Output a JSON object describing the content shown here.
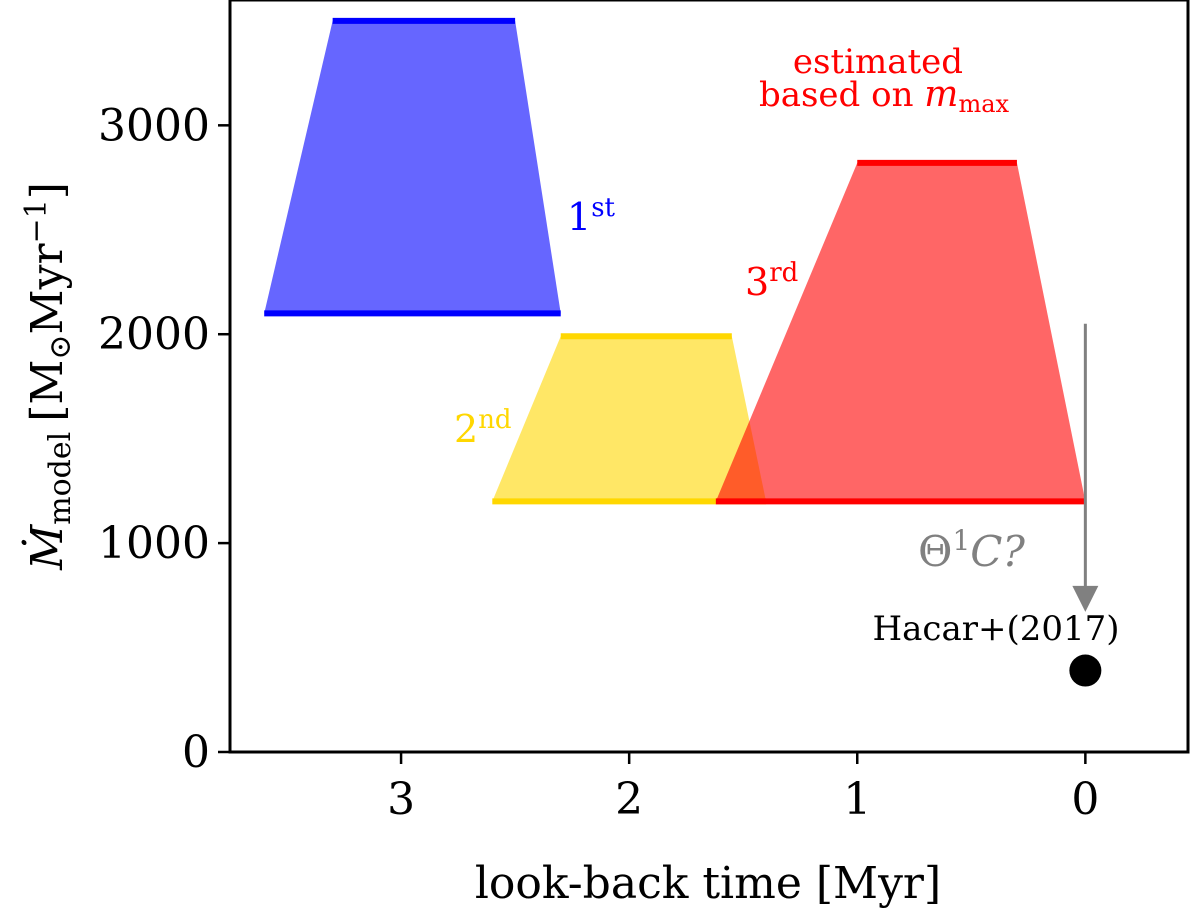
{
  "chart_data": {
    "type": "area",
    "xlabel": "look-back time [Myr]",
    "ylabel_main": "Ṁ",
    "ylabel_sub": "model",
    "ylabel_units": "[M",
    "ylabel_units_sub": "⊙",
    "ylabel_units_tail": "Myr",
    "ylabel_units_sup": "−1",
    "ylabel_units_close": "]",
    "xlim": [
      3.75,
      -0.45
    ],
    "ylim": [
      0,
      3600
    ],
    "x_ticks": [
      3,
      2,
      1,
      0
    ],
    "x_tick_labels": [
      "3",
      "2",
      "1",
      "0"
    ],
    "y_ticks": [
      0,
      1000,
      2000,
      3000
    ],
    "y_tick_labels": [
      "0",
      "1000",
      "2000",
      "3000"
    ],
    "grid": false,
    "series": [
      {
        "name": "1st",
        "label_main": "1",
        "label_sup": "st",
        "color": "#0000ff",
        "fill_opacity": 0.6,
        "bottom": {
          "x_start": 3.6,
          "x_end": 2.3,
          "y": 2100
        },
        "top": {
          "x_start": 3.3,
          "x_end": 2.5,
          "y": 3500
        },
        "label_pos": {
          "x": 2.3,
          "y": 2560
        }
      },
      {
        "name": "2nd",
        "label_main": "2",
        "label_sup": "nd",
        "color": "#ffd700",
        "fill_opacity": 0.6,
        "bottom": {
          "x_start": 2.6,
          "x_end": 1.4,
          "y": 1200
        },
        "top": {
          "x_start": 2.3,
          "x_end": 1.55,
          "y": 1990
        },
        "label_pos": {
          "x": 2.58,
          "y": 1510
        }
      },
      {
        "name": "3rd",
        "label_main": "3",
        "label_sup": "rd",
        "color": "#ff0000",
        "fill_opacity": 0.6,
        "bottom": {
          "x_start": 1.62,
          "x_end": 0.0,
          "y": 1200
        },
        "top": {
          "x_start": 1.0,
          "x_end": 0.3,
          "y": 2820
        },
        "label_pos": {
          "x": 1.55,
          "y": 2180
        }
      }
    ],
    "annotations": {
      "estimated_line1": "estimated",
      "estimated_line2_text": "based on ",
      "estimated_line2_math": "m",
      "estimated_line2_sub": "max",
      "estimated_color": "#ff0000",
      "theta_main": "Θ",
      "theta_sup": "1",
      "theta_tail": "C?",
      "theta_color": "#808080",
      "arrow": {
        "x": 0.0,
        "y_start": 2050,
        "y_end": 690
      },
      "observation_label": "Hacar+(2017)",
      "observation_point": {
        "x": 0.0,
        "y": 390
      }
    }
  }
}
